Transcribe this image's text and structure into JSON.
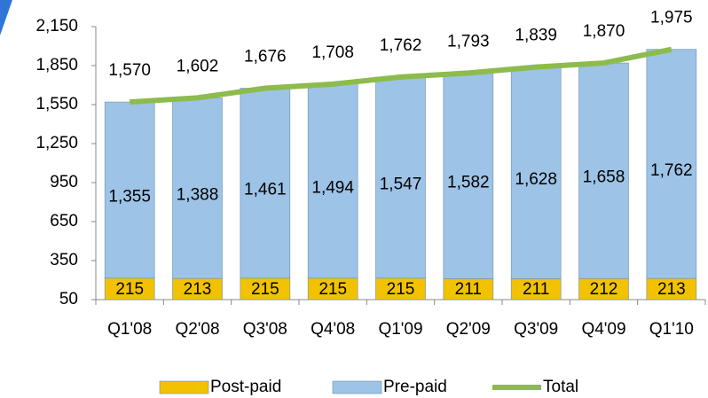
{
  "chart_data": {
    "type": "stacked_bar_line",
    "categories": [
      "Q1'08",
      "Q2'08",
      "Q3'08",
      "Q4'08",
      "Q1'09",
      "Q2'09",
      "Q3'09",
      "Q4'09",
      "Q1'10"
    ],
    "series": [
      {
        "name": "Post-paid",
        "color": "#f2c200",
        "values": [
          215,
          213,
          215,
          215,
          215,
          211,
          211,
          212,
          213
        ]
      },
      {
        "name": "Pre-paid",
        "color": "#9dc3e6",
        "values": [
          1355,
          1388,
          1461,
          1494,
          1547,
          1582,
          1628,
          1658,
          1762
        ],
        "value_labels": [
          "1,355",
          "1,388",
          "1,461",
          "1,494",
          "1,547",
          "1,582",
          "1,628",
          "1,658",
          "1,762"
        ]
      },
      {
        "name": "Total",
        "color": "#8dbb4c",
        "line": true,
        "values": [
          1570,
          1602,
          1676,
          1708,
          1762,
          1793,
          1839,
          1870,
          1975
        ],
        "value_labels": [
          "1,570",
          "1,602",
          "1,676",
          "1,708",
          "1,762",
          "1,793",
          "1,839",
          "1,870",
          "1,975"
        ]
      }
    ],
    "ylim": [
      50,
      2150
    ],
    "yticks": [
      50,
      350,
      650,
      950,
      {
        "value": 1250,
        "label": "1,250"
      },
      {
        "value": 1550,
        "label": "1,550"
      },
      {
        "value": 1850,
        "label": "1,850"
      },
      {
        "value": 2150,
        "label": "2,150"
      }
    ],
    "legend": "bottom"
  }
}
